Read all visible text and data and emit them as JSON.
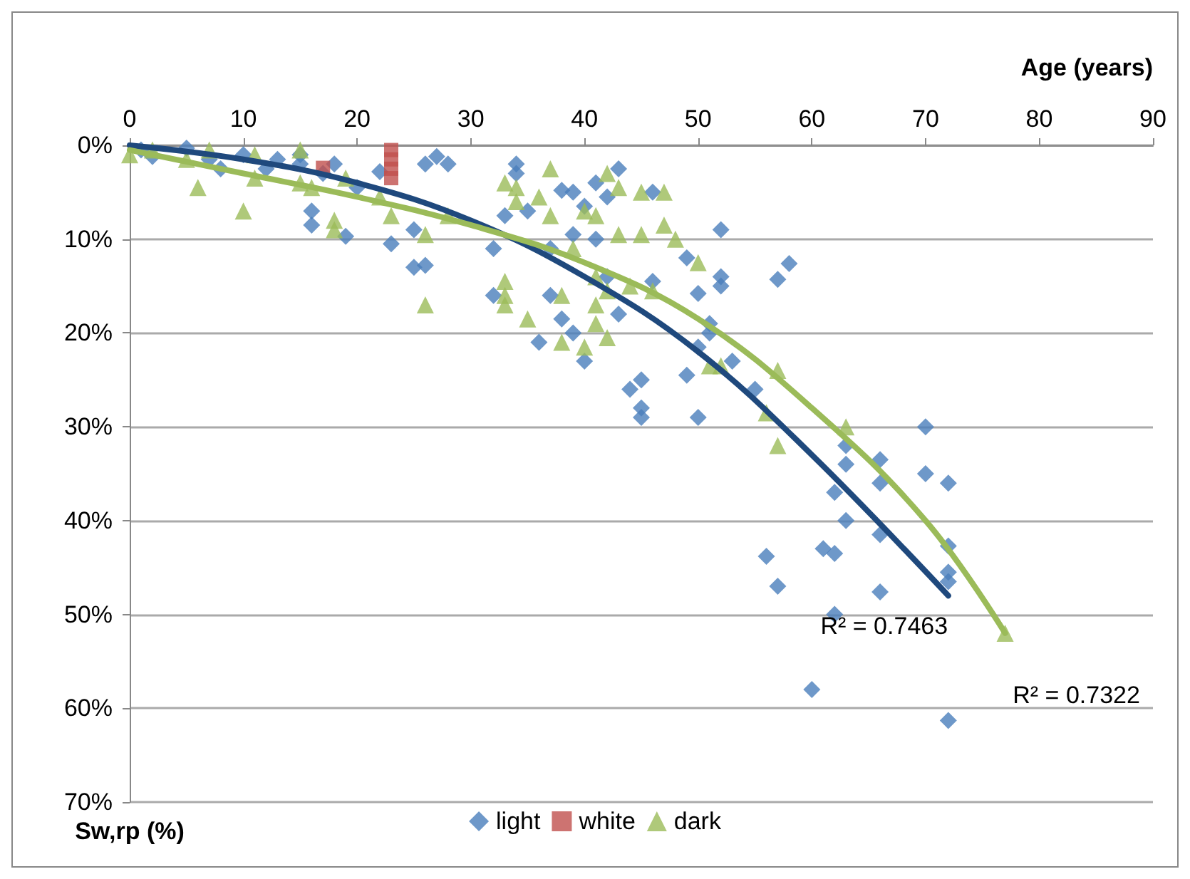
{
  "chart_data": {
    "type": "scatter",
    "xlabel": "Age (years)",
    "ylabel": "Sw,rp (%)",
    "xlim": [
      0,
      90
    ],
    "xticks": [
      0,
      10,
      20,
      30,
      40,
      50,
      60,
      70,
      80,
      90
    ],
    "ylim": [
      70,
      0
    ],
    "yticks": [
      {
        "value": 0,
        "label": "0%"
      },
      {
        "value": 10,
        "label": "10%"
      },
      {
        "value": 20,
        "label": "20%"
      },
      {
        "value": 30,
        "label": "30%"
      },
      {
        "value": 40,
        "label": "40%"
      },
      {
        "value": 50,
        "label": "50%"
      },
      {
        "value": 60,
        "label": "60%"
      },
      {
        "value": 70,
        "label": "70%"
      }
    ],
    "grid": "y",
    "legend": "bottom",
    "series": [
      {
        "name": "light",
        "color": "#4a7ebb",
        "marker": "diamond",
        "x": [
          1,
          2,
          5,
          7,
          8,
          10,
          12,
          13,
          15,
          15,
          16,
          16,
          17,
          18,
          19,
          20,
          22,
          23,
          25,
          25,
          26,
          26,
          27,
          28,
          32,
          32,
          33,
          34,
          34,
          35,
          36,
          37,
          37,
          38,
          38,
          39,
          39,
          39,
          40,
          40,
          41,
          41,
          42,
          42,
          43,
          43,
          44,
          45,
          45,
          45,
          46,
          46,
          49,
          49,
          50,
          50,
          50,
          51,
          51,
          52,
          52,
          52,
          53,
          55,
          56,
          57,
          57,
          58,
          60,
          61,
          62,
          62,
          62,
          63,
          63,
          63,
          66,
          66,
          66,
          66,
          70,
          70,
          72,
          72,
          72,
          72,
          72
        ],
        "values": [
          0.5,
          1.2,
          0.3,
          1.5,
          2.5,
          1,
          2.5,
          1.5,
          2,
          1,
          7,
          8.5,
          3,
          2,
          9.7,
          4.5,
          2.8,
          10.5,
          9,
          13,
          12.8,
          2,
          1.2,
          2,
          11,
          16,
          7.5,
          2,
          3,
          7,
          21,
          11,
          16,
          4.8,
          18.5,
          5,
          9.5,
          20,
          23,
          6.5,
          4,
          10,
          14,
          5.5,
          2.5,
          18,
          26,
          25,
          28,
          29,
          5,
          14.5,
          12,
          24.5,
          29,
          15.8,
          21.5,
          20,
          19,
          14,
          15,
          9,
          23,
          26,
          43.8,
          47,
          14.3,
          12.6,
          58,
          43,
          43.5,
          50,
          37,
          34,
          40,
          32,
          33.5,
          36,
          41.5,
          47.6,
          30,
          35,
          36,
          42.7,
          45.5,
          46.5,
          61.3
        ]
      },
      {
        "name": "white",
        "color": "#c0504d",
        "marker": "square",
        "x": [
          17,
          23,
          23,
          23,
          23
        ],
        "values": [
          2.4,
          0.5,
          1.5,
          2.5,
          3.5
        ]
      },
      {
        "name": "dark",
        "color": "#9bbb59",
        "marker": "triangle",
        "x": [
          0,
          2,
          5,
          6,
          7,
          10,
          11,
          11,
          15,
          15,
          16,
          18,
          18,
          19,
          22,
          23,
          26,
          26,
          28,
          33,
          33,
          33,
          33,
          34,
          34,
          35,
          36,
          37,
          37,
          38,
          38,
          39,
          40,
          40,
          41,
          41,
          41,
          41,
          42,
          42,
          42,
          43,
          43,
          44,
          45,
          45,
          46,
          47,
          47,
          48,
          50,
          51,
          52,
          56,
          57,
          57,
          63,
          77
        ],
        "values": [
          1,
          0.5,
          1.5,
          4.5,
          0.5,
          7,
          1,
          3.5,
          0.5,
          4,
          4.5,
          8,
          9,
          3.5,
          5.5,
          7.5,
          9.5,
          17,
          7.5,
          4,
          14.5,
          16,
          17,
          6,
          4.5,
          18.5,
          5.5,
          2.5,
          7.5,
          16,
          21,
          11,
          21.5,
          7,
          14,
          17,
          19,
          7.5,
          3,
          15.5,
          20.5,
          9.5,
          4.5,
          15,
          5,
          9.5,
          15.5,
          5,
          8.5,
          10,
          12.5,
          23.5,
          23.5,
          28.5,
          24,
          32,
          30,
          52
        ]
      },
      {
        "type": "line",
        "color": "#1f497d",
        "x": [
          0,
          10,
          20,
          30,
          40,
          50,
          60,
          72
        ],
        "values": [
          0,
          1.5,
          4,
          8,
          14,
          22,
          33,
          48
        ]
      },
      {
        "type": "line",
        "color": "#9bbb59",
        "x": [
          0,
          10,
          20,
          30,
          40,
          50,
          60,
          70,
          77
        ],
        "values": [
          0.5,
          3,
          5.5,
          8.5,
          12.5,
          18.5,
          28,
          40,
          52
        ]
      }
    ],
    "annotations": [
      "R² = 0.7463",
      "R² = 0.7322"
    ]
  }
}
